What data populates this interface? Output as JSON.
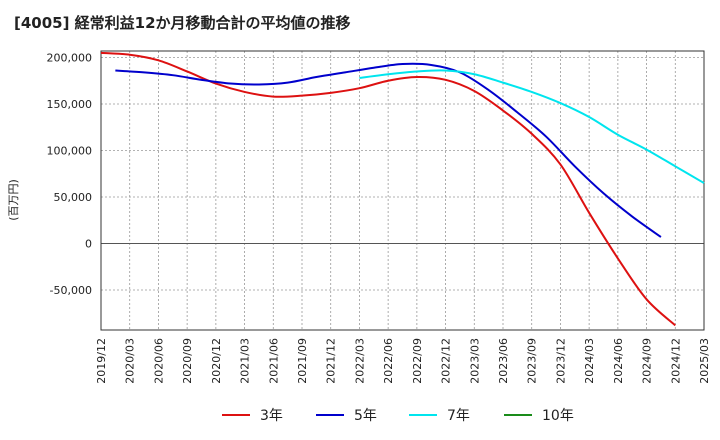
{
  "title": "[4005]  経常利益12か月移動合計の平均値の推移",
  "chart_data": {
    "type": "line",
    "ylabel": "(百万円)",
    "xlabel": "",
    "ylim": [
      -93000,
      207000
    ],
    "yticks": [
      200000,
      150000,
      100000,
      50000,
      0,
      -50000
    ],
    "ytick_labels": [
      "200,000",
      "150,000",
      "100,000",
      "50,000",
      "0",
      "-50,000"
    ],
    "x_tick_labels": [
      "2019/12",
      "2020/03",
      "2020/06",
      "2020/09",
      "2020/12",
      "2021/03",
      "2021/06",
      "2021/09",
      "2021/12",
      "2022/03",
      "2022/06",
      "2022/09",
      "2022/12",
      "2023/03",
      "2023/06",
      "2023/09",
      "2023/12",
      "2024/03",
      "2024/06",
      "2024/09",
      "2024/12",
      "2025/03"
    ],
    "grid": true,
    "legend_position": "bottom",
    "series": [
      {
        "name": "3年",
        "color": "#dd1111",
        "start_index": 0,
        "values": [
          205000,
          203000,
          197000,
          185000,
          172000,
          163000,
          158000,
          159000,
          162000,
          167000,
          175000,
          179000,
          176000,
          164000,
          143000,
          118000,
          85000,
          33000,
          -16000,
          -60000,
          -88000
        ]
      },
      {
        "name": "5年",
        "color": "#0000cc",
        "start_index": 0.5,
        "values": [
          186000,
          184000,
          181000,
          176000,
          172000,
          171000,
          173000,
          179000,
          184000,
          189000,
          193000,
          192000,
          184000,
          165000,
          141000,
          115000,
          83000,
          54000,
          29000,
          7000
        ]
      },
      {
        "name": "7年",
        "color": "#00e5ee",
        "start_index": 9,
        "values": [
          178000,
          182000,
          185000,
          186000,
          182000,
          173000,
          163000,
          151000,
          136000,
          117000,
          101000,
          83000,
          65000
        ]
      },
      {
        "name": "10年",
        "color": "#1a8c1a",
        "start_index": 0,
        "values": []
      }
    ]
  }
}
